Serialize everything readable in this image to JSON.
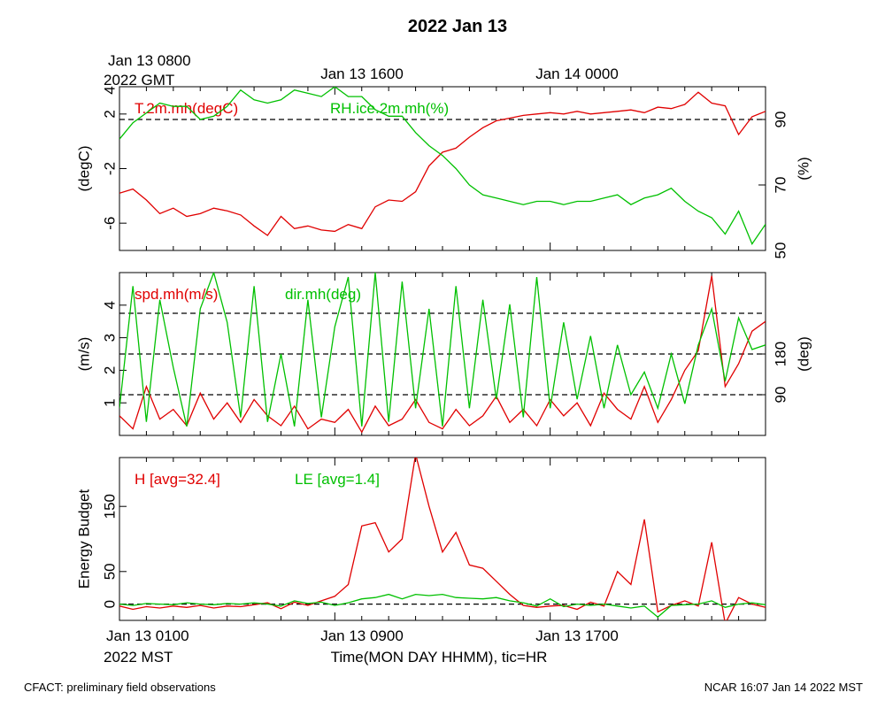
{
  "title": "2022 Jan 13",
  "top_time_axis": {
    "first_label_line1": "Jan 13 0800",
    "first_label_line2": "2022 GMT",
    "labels": [
      "Jan 13 1600",
      "Jan 14 0000"
    ]
  },
  "bottom_time_axis": {
    "first_label_line1": "Jan 13 0100",
    "first_label_line2": "2022 MST",
    "labels": [
      "Jan 13 0900",
      "Jan 13 1700"
    ],
    "xlabel": "Time(MON DAY HHMM), tic=HR"
  },
  "footer": {
    "left": "CFACT: preliminary field observations",
    "right": "NCAR 16:07 Jan 14 2022 MST"
  },
  "colors": {
    "red": "#e00000",
    "green": "#00c000",
    "axis": "#000000"
  },
  "chart_data": [
    {
      "type": "line",
      "panel": "temperature-humidity",
      "x_unit": "hours MST",
      "xlim": [
        1,
        25
      ],
      "left_axis": {
        "ylabel": "(degC)",
        "ylim": [
          -8,
          4
        ],
        "ticks": [
          -6,
          -2,
          2
        ],
        "top_tick_label": "4"
      },
      "right_axis": {
        "ylabel": "(%)",
        "ylim": [
          50,
          100
        ],
        "ticks": [
          50,
          70,
          90
        ]
      },
      "reference_line_right": 90,
      "series": [
        {
          "name": "T.2m.mh(degC)",
          "color": "#e00000",
          "axis": "left",
          "x": [
            1.0,
            1.5,
            2.0,
            2.5,
            3.0,
            3.5,
            4.0,
            4.5,
            5.0,
            5.5,
            6.0,
            6.5,
            7.0,
            7.5,
            8.0,
            8.5,
            9.0,
            9.5,
            10.0,
            10.5,
            11.0,
            11.5,
            12.0,
            12.5,
            13.0,
            13.5,
            14.0,
            14.5,
            15.0,
            15.5,
            16.0,
            16.5,
            17.0,
            17.5,
            18.0,
            18.5,
            19.0,
            19.5,
            20.0,
            20.5,
            21.0,
            21.5,
            22.0,
            22.5,
            23.0,
            23.5,
            24.0,
            24.5,
            25.0
          ],
          "y": [
            -3.8,
            -3.5,
            -4.3,
            -5.3,
            -4.9,
            -5.5,
            -5.3,
            -4.9,
            -5.1,
            -5.4,
            -6.2,
            -6.9,
            -5.5,
            -6.4,
            -6.2,
            -6.5,
            -6.6,
            -6.1,
            -6.4,
            -4.8,
            -4.3,
            -4.4,
            -3.7,
            -1.8,
            -0.8,
            -0.5,
            0.3,
            1.0,
            1.5,
            1.7,
            1.9,
            2.0,
            2.1,
            2.0,
            2.2,
            2.0,
            2.1,
            2.2,
            2.3,
            2.1,
            2.5,
            2.4,
            2.7,
            3.6,
            2.8,
            2.6,
            0.5,
            1.8,
            2.2
          ]
        },
        {
          "name": "RH.ice.2m.mh(%)",
          "color": "#00c000",
          "axis": "right",
          "x": [
            1.0,
            1.5,
            2.0,
            2.5,
            3.0,
            3.5,
            4.0,
            4.5,
            5.0,
            5.5,
            6.0,
            6.5,
            7.0,
            7.5,
            8.0,
            8.5,
            9.0,
            9.5,
            10.0,
            10.5,
            11.0,
            11.5,
            12.0,
            12.5,
            13.0,
            13.5,
            14.0,
            14.5,
            15.0,
            15.5,
            16.0,
            16.5,
            17.0,
            17.5,
            18.0,
            18.5,
            19.0,
            19.5,
            20.0,
            20.5,
            21.0,
            21.5,
            22.0,
            22.5,
            23.0,
            23.5,
            24.0,
            24.5,
            25.0
          ],
          "y": [
            84,
            89,
            92,
            95,
            94,
            94,
            90,
            91,
            94,
            99,
            96,
            95,
            96,
            99,
            98,
            97,
            100,
            97,
            97,
            93,
            91,
            91,
            86,
            82,
            79,
            75,
            70,
            67,
            66,
            65,
            64,
            65,
            65,
            64,
            65,
            65,
            66,
            67,
            64,
            66,
            67,
            69,
            65,
            62,
            60,
            55,
            62,
            52,
            58
          ]
        }
      ]
    },
    {
      "type": "line",
      "panel": "wind",
      "x_unit": "hours MST",
      "xlim": [
        1,
        25
      ],
      "left_axis": {
        "ylabel": "(m/s)",
        "ylim": [
          0,
          5
        ],
        "ticks": [
          1,
          2,
          3,
          4
        ]
      },
      "right_axis": {
        "ylabel": "(deg)",
        "ylim": [
          0,
          360
        ],
        "ticks": [
          90,
          180
        ]
      },
      "reference_lines_right": [
        90,
        180,
        270
      ],
      "series": [
        {
          "name": "spd.mh(m/s)",
          "color": "#e00000",
          "axis": "left",
          "x": [
            1.0,
            1.5,
            2.0,
            2.5,
            3.0,
            3.5,
            4.0,
            4.5,
            5.0,
            5.5,
            6.0,
            6.5,
            7.0,
            7.5,
            8.0,
            8.5,
            9.0,
            9.5,
            10.0,
            10.5,
            11.0,
            11.5,
            12.0,
            12.5,
            13.0,
            13.5,
            14.0,
            14.5,
            15.0,
            15.5,
            16.0,
            16.5,
            17.0,
            17.5,
            18.0,
            18.5,
            19.0,
            19.5,
            20.0,
            20.5,
            21.0,
            21.5,
            22.0,
            22.5,
            23.0,
            23.5,
            24.0,
            24.5,
            25.0
          ],
          "y": [
            0.6,
            0.2,
            1.5,
            0.5,
            0.8,
            0.3,
            1.3,
            0.5,
            1.0,
            0.4,
            1.1,
            0.6,
            0.3,
            0.9,
            0.2,
            0.5,
            0.4,
            0.8,
            0.1,
            0.9,
            0.3,
            0.5,
            1.1,
            0.4,
            0.2,
            0.8,
            0.3,
            0.6,
            1.2,
            0.4,
            0.8,
            0.3,
            1.1,
            0.6,
            1.0,
            0.3,
            1.3,
            0.8,
            0.5,
            1.5,
            0.4,
            1.1,
            2.0,
            2.6,
            4.9,
            1.5,
            2.2,
            3.2,
            3.5
          ]
        },
        {
          "name": "dir.mh(deg)",
          "color": "#00c000",
          "axis": "right",
          "x": [
            1.0,
            1.5,
            2.0,
            2.5,
            3.0,
            3.5,
            4.0,
            4.5,
            5.0,
            5.5,
            6.0,
            6.5,
            7.0,
            7.5,
            8.0,
            8.5,
            9.0,
            9.5,
            10.0,
            10.5,
            11.0,
            11.5,
            12.0,
            12.5,
            13.0,
            13.5,
            14.0,
            14.5,
            15.0,
            15.5,
            16.0,
            16.5,
            17.0,
            17.5,
            18.0,
            18.5,
            19.0,
            19.5,
            20.0,
            20.5,
            21.0,
            21.5,
            22.0,
            22.5,
            23.0,
            23.5,
            24.0,
            24.5,
            25.0
          ],
          "y": [
            60,
            330,
            30,
            300,
            150,
            20,
            280,
            360,
            250,
            40,
            330,
            30,
            180,
            20,
            300,
            40,
            240,
            350,
            20,
            360,
            30,
            340,
            60,
            280,
            20,
            330,
            60,
            300,
            80,
            290,
            40,
            350,
            60,
            250,
            80,
            220,
            60,
            200,
            90,
            140,
            60,
            180,
            70,
            200,
            280,
            120,
            260,
            190,
            200
          ]
        }
      ]
    },
    {
      "type": "line",
      "panel": "energy-budget",
      "x_unit": "hours MST",
      "xlim": [
        1,
        25
      ],
      "ylabel": "Energy Budget",
      "ylim": [
        -25,
        225
      ],
      "ticks": [
        0,
        50,
        150
      ],
      "reference_line": 0,
      "series": [
        {
          "name": "H",
          "label": "H [avg=32.4]",
          "color": "#e00000",
          "x": [
            1.0,
            1.5,
            2.0,
            2.5,
            3.0,
            3.5,
            4.0,
            4.5,
            5.0,
            5.5,
            6.0,
            6.5,
            7.0,
            7.5,
            8.0,
            8.5,
            9.0,
            9.5,
            10.0,
            10.5,
            11.0,
            11.5,
            12.0,
            12.5,
            13.0,
            13.5,
            14.0,
            14.5,
            15.0,
            15.5,
            16.0,
            16.5,
            17.0,
            17.5,
            18.0,
            18.5,
            19.0,
            19.5,
            20.0,
            20.5,
            21.0,
            21.5,
            22.0,
            22.5,
            23.0,
            23.5,
            24.0,
            24.5,
            25.0
          ],
          "y": [
            -3,
            -8,
            -4,
            -6,
            -3,
            -5,
            -2,
            -6,
            -3,
            -4,
            -1,
            2,
            -7,
            3,
            -2,
            5,
            12,
            30,
            120,
            125,
            80,
            100,
            230,
            150,
            80,
            110,
            60,
            55,
            35,
            15,
            -2,
            -5,
            -3,
            -2,
            -8,
            3,
            -3,
            50,
            30,
            130,
            -12,
            -2,
            5,
            -3,
            95,
            -30,
            10,
            0,
            -5
          ]
        },
        {
          "name": "LE",
          "label": "LE [avg=1.4]",
          "color": "#00c000",
          "x": [
            1.0,
            1.5,
            2.0,
            2.5,
            3.0,
            3.5,
            4.0,
            4.5,
            5.0,
            5.5,
            6.0,
            6.5,
            7.0,
            7.5,
            8.0,
            8.5,
            9.0,
            9.5,
            10.0,
            10.5,
            11.0,
            11.5,
            12.0,
            12.5,
            13.0,
            13.5,
            14.0,
            14.5,
            15.0,
            15.5,
            16.0,
            16.5,
            17.0,
            17.5,
            18.0,
            18.5,
            19.0,
            19.5,
            20.0,
            20.5,
            21.0,
            21.5,
            22.0,
            22.5,
            23.0,
            23.5,
            24.0,
            24.5,
            25.0
          ],
          "y": [
            0,
            -2,
            1,
            0,
            -1,
            2,
            0,
            -1,
            1,
            0,
            2,
            0,
            -3,
            5,
            1,
            3,
            -2,
            2,
            8,
            10,
            15,
            8,
            15,
            13,
            15,
            10,
            9,
            8,
            10,
            5,
            2,
            -3,
            8,
            -4,
            0,
            -2,
            0,
            -3,
            -6,
            -3,
            -20,
            -2,
            -1,
            0,
            5,
            -5,
            0,
            2,
            -1
          ]
        }
      ]
    }
  ]
}
